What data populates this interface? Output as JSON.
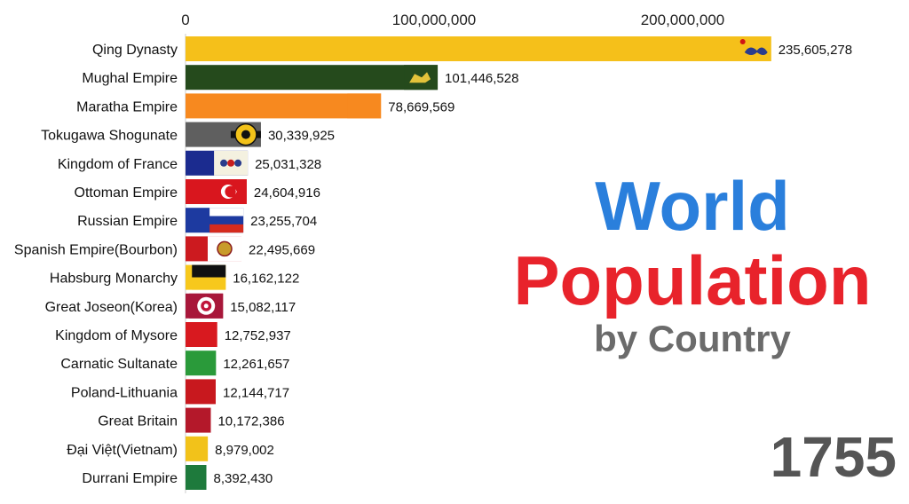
{
  "title": {
    "line1": "World",
    "line2": "Population",
    "line3": "by Country"
  },
  "year": "1755",
  "colors": {
    "title_line1": "#2a7fdc",
    "title_line2": "#e8232b",
    "title_line3": "#6b6b6b",
    "year": "#555555"
  },
  "chart_data": {
    "type": "bar",
    "orientation": "horizontal",
    "title": "World Population by Country",
    "xlim": [
      0,
      250000000
    ],
    "x_ticks": [
      {
        "value": 0,
        "label": "0"
      },
      {
        "value": 100000000,
        "label": "100,000,000"
      },
      {
        "value": 200000000,
        "label": "200,000,000"
      }
    ],
    "axis_position": "top",
    "grid": false,
    "categories": [
      "Qing Dynasty",
      "Mughal Empire",
      "Maratha Empire",
      "Tokugawa Shogunate",
      "Kingdom of France",
      "Ottoman Empire",
      "Russian Empire",
      "Spanish Empire(Bourbon)",
      "Habsburg Monarchy",
      "Great Joseon(Korea)",
      "Kingdom of Mysore",
      "Carnatic Sultanate",
      "Poland-Lithuania",
      "Great Britain",
      "Đại Việt(Vietnam)",
      "Durrani Empire"
    ],
    "values": [
      235605278,
      101446528,
      78669569,
      30339925,
      25031328,
      24604916,
      23255704,
      22495669,
      16162122,
      15082117,
      12752937,
      12261657,
      12144717,
      10172386,
      8979002,
      8392430
    ],
    "value_labels": [
      "235,605,278",
      "101,446,528",
      "78,669,569",
      "30,339,925",
      "25,031,328",
      "24,604,916",
      "23,255,704",
      "22,495,669",
      "16,162,122",
      "15,082,117",
      "12,752,937",
      "12,261,657",
      "12,144,717",
      "10,172,386",
      "8,979,002",
      "8,392,430"
    ],
    "bar_colors": [
      "#f5c01a",
      "#254a1c",
      "#f7891f",
      "#5f5f5f",
      "#1b2b8f",
      "#d9161e",
      "#1d3aa0",
      "#cc1a1f",
      "#f7c81c",
      "#a8173a",
      "#d8191f",
      "#2a9a3a",
      "#c8181e",
      "#b4182a",
      "#f2c21a",
      "#1e7a3c"
    ],
    "flag_icons": [
      "qing-dragon-flag-icon",
      "mughal-flag-icon",
      "maratha-pennant-icon",
      "tokugawa-crest-icon",
      "france-royal-flag-icon",
      "ottoman-flag-icon",
      "russia-flag-icon",
      "spain-bourbon-flag-icon",
      "habsburg-flag-icon",
      "joseon-flag-icon",
      "mysore-flag-icon",
      "carnatic-flag-icon",
      "poland-lithuania-flag-icon",
      "great-britain-flag-icon",
      "dai-viet-flag-icon",
      "durrani-flag-icon"
    ]
  }
}
